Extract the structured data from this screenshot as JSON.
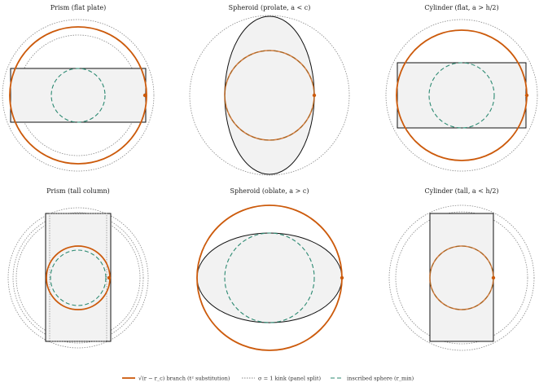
{
  "colors": {
    "branch": "#cc5a0b",
    "kink": "#888888",
    "inscribed": "#2d8a72",
    "shape_fill": "#f2f2f2",
    "shape_stroke": "#111111"
  },
  "panels": [
    {
      "title": "Prism (flat plate)"
    },
    {
      "title": "Spheroid (prolate, a < c)"
    },
    {
      "title": "Cylinder (flat, a > h/2)"
    },
    {
      "title": "Prism (tall column)"
    },
    {
      "title": "Spheroid (oblate, a > c)"
    },
    {
      "title": "Cylinder (tall, a < h/2)"
    }
  ],
  "legend": {
    "branch": "√(r − r_c) branch (t² substitution)",
    "kink": "σ = 1 kink (panel split)",
    "inscribed": "inscribed sphere (r_min)"
  }
}
